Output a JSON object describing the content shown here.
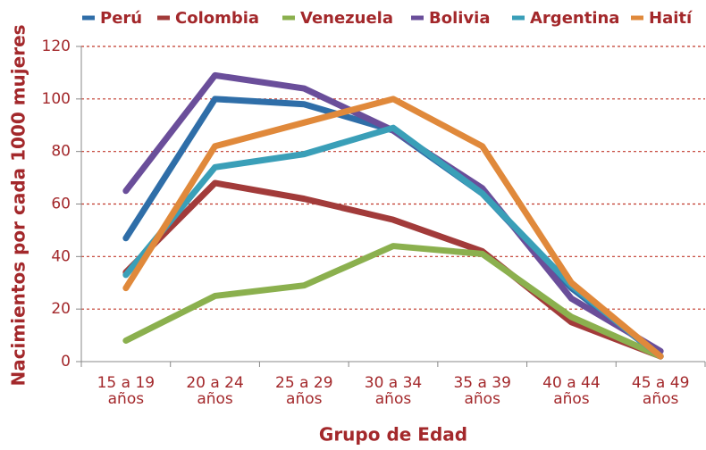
{
  "chart_data": {
    "type": "line",
    "categories": [
      "15 a 19\naños",
      "20 a 24\naños",
      "25 a 29\naños",
      "30 a 34\naños",
      "35 a 39\naños",
      "40 a 44\naños",
      "45 a 49\naños"
    ],
    "series": [
      {
        "name": "Perú",
        "color": "#2f6ea8",
        "values": [
          47,
          100,
          98,
          88,
          64,
          28,
          2
        ]
      },
      {
        "name": "Colombia",
        "color": "#a23b3a",
        "values": [
          34,
          68,
          62,
          54,
          42,
          15,
          2
        ]
      },
      {
        "name": "Venezuela",
        "color": "#8bb04e",
        "values": [
          8,
          25,
          29,
          44,
          41,
          17,
          2
        ]
      },
      {
        "name": "Bolivia",
        "color": "#6a4e9a",
        "values": [
          65,
          109,
          104,
          88,
          66,
          24,
          4
        ]
      },
      {
        "name": "Argentina",
        "color": "#3a9fb8",
        "values": [
          33,
          74,
          79,
          89,
          64,
          29,
          2
        ]
      },
      {
        "name": "Haití",
        "color": "#e0893b",
        "values": [
          28,
          82,
          91,
          100,
          82,
          30,
          2
        ]
      }
    ],
    "xlabel": "Grupo de Edad",
    "ylabel": "Nacimientos por cada 1000 mujeres",
    "ylim": [
      0,
      120
    ],
    "yticks": [
      0,
      20,
      40,
      60,
      80,
      100,
      120
    ],
    "grid": true,
    "legend": "top"
  }
}
